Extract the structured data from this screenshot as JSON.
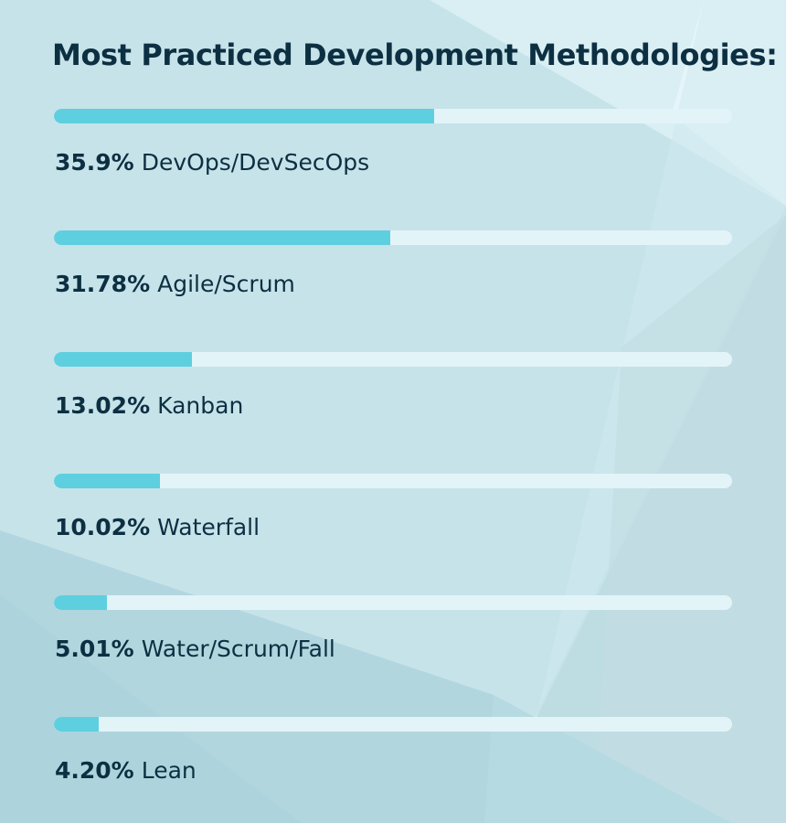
{
  "chart_data": {
    "type": "bar",
    "orientation": "horizontal",
    "title": "Most Practiced Development Methodologies:",
    "xlim": [
      0,
      64
    ],
    "bars": [
      {
        "label": "DevOps/DevSecOps",
        "value": 35.9,
        "value_text": "35.9%"
      },
      {
        "label": "Agile/Scrum",
        "value": 31.78,
        "value_text": "31.78%"
      },
      {
        "label": "Kanban",
        "value": 13.02,
        "value_text": "13.02%"
      },
      {
        "label": "Waterfall",
        "value": 10.02,
        "value_text": "10.02%"
      },
      {
        "label": "Water/Scrum/Fall",
        "value": 5.01,
        "value_text": "5.01%"
      },
      {
        "label": "Lean",
        "value": 4.2,
        "value_text": "4.20%"
      }
    ]
  },
  "colors": {
    "fill": "#5ecfdf",
    "track": "#e2f4f8",
    "text": "#0d2f42",
    "background": "#c8e4ea"
  }
}
